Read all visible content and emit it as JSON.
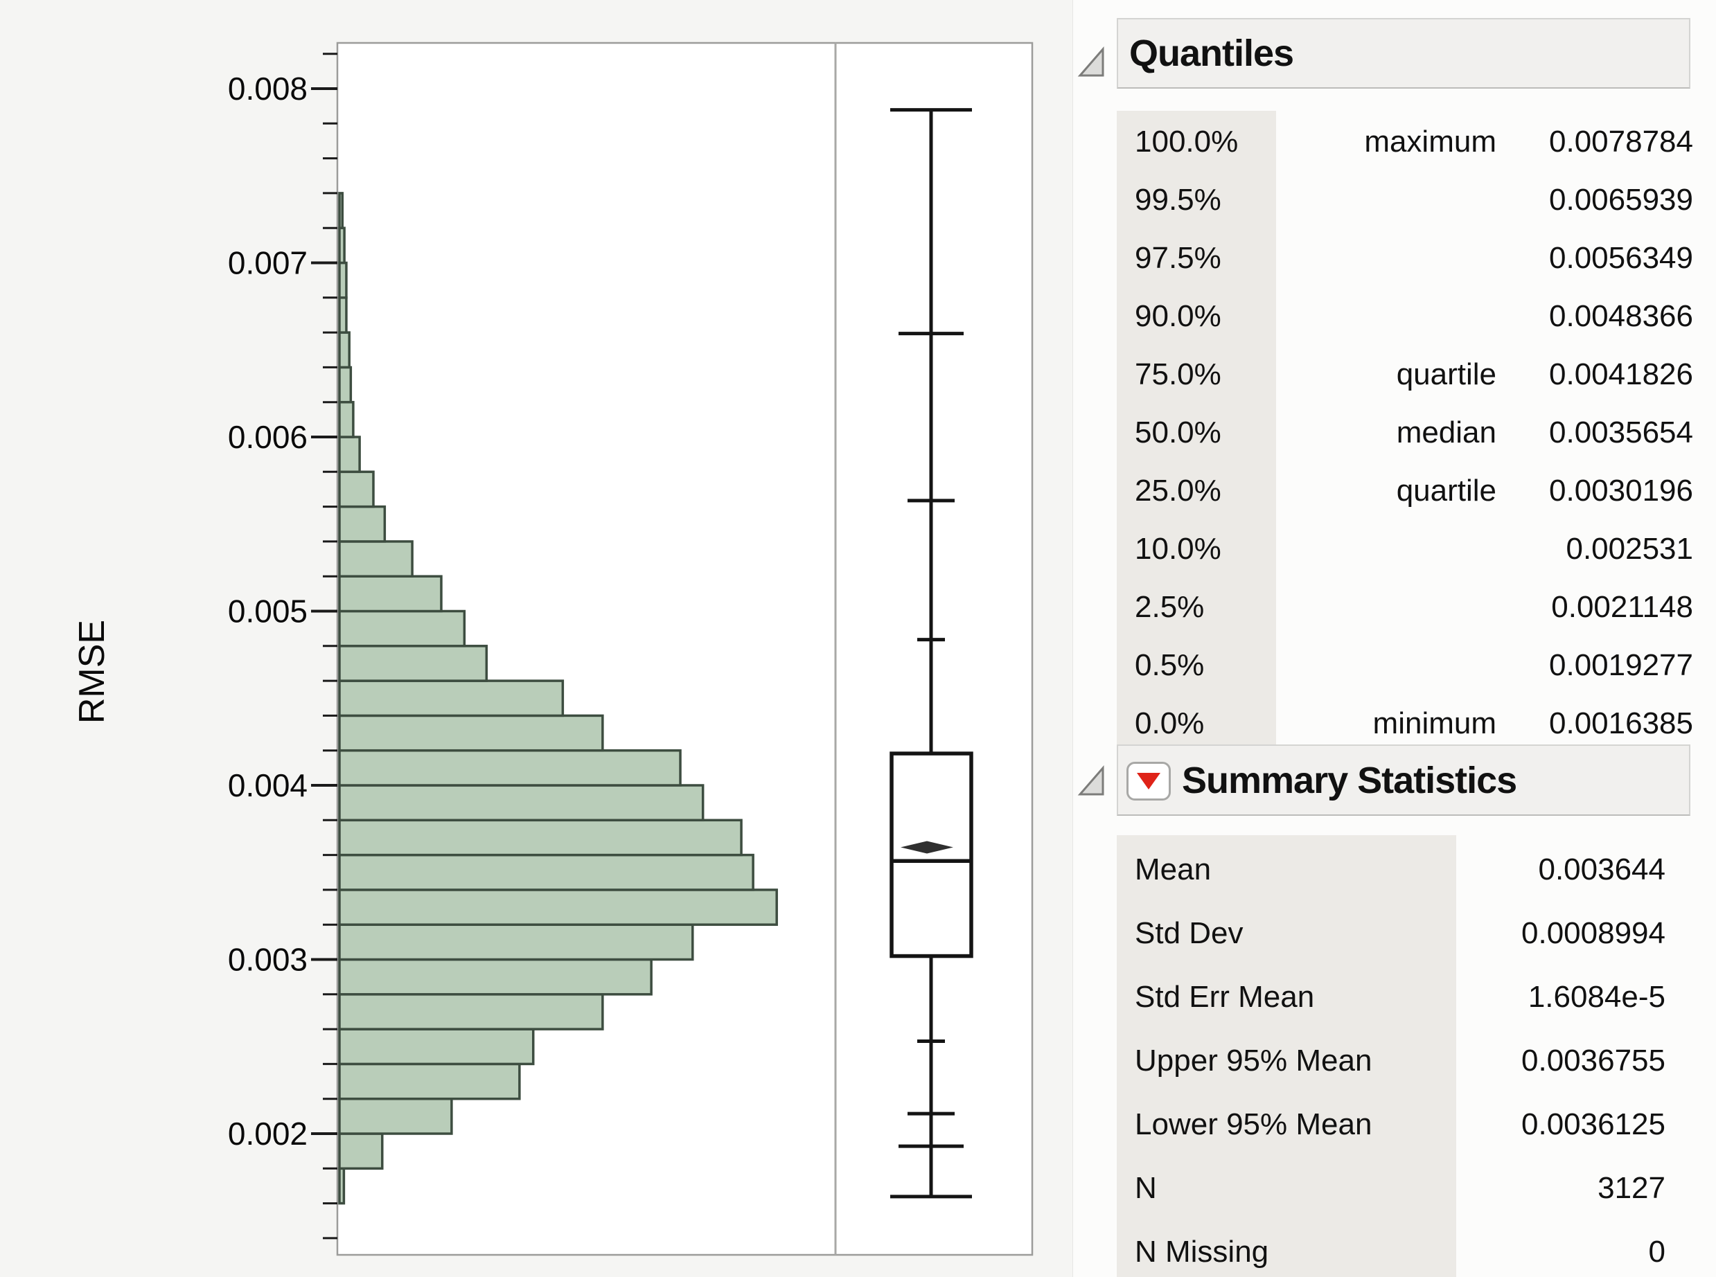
{
  "axis": {
    "label": "RMSE",
    "ticks": [
      {
        "value": 0.008,
        "label": "0.008"
      },
      {
        "value": 0.007,
        "label": "0.007"
      },
      {
        "value": 0.006,
        "label": "0.006"
      },
      {
        "value": 0.005,
        "label": "0.005"
      },
      {
        "value": 0.004,
        "label": "0.004"
      },
      {
        "value": 0.003,
        "label": "0.003"
      },
      {
        "value": 0.002,
        "label": "0.002"
      }
    ]
  },
  "chart_data": {
    "type": "bar",
    "subtype": "horizontal-histogram-with-quantile-boxplot",
    "title": "",
    "xlabel": "",
    "ylabel": "RMSE",
    "ylim": [
      0.00133,
      0.0083
    ],
    "grid": false,
    "bin_width": 0.0002,
    "bar_length_note": "frac = bar length as fraction of histogram panel width (no count axis is shown in the image)",
    "bins": [
      {
        "lo": 0.0016,
        "hi": 0.0018,
        "frac": 0.009
      },
      {
        "lo": 0.0018,
        "hi": 0.002,
        "frac": 0.087
      },
      {
        "lo": 0.002,
        "hi": 0.0022,
        "frac": 0.228
      },
      {
        "lo": 0.0022,
        "hi": 0.0024,
        "frac": 0.366
      },
      {
        "lo": 0.0024,
        "hi": 0.0026,
        "frac": 0.394
      },
      {
        "lo": 0.0026,
        "hi": 0.0028,
        "frac": 0.535
      },
      {
        "lo": 0.0028,
        "hi": 0.003,
        "frac": 0.634
      },
      {
        "lo": 0.003,
        "hi": 0.0032,
        "frac": 0.718
      },
      {
        "lo": 0.0032,
        "hi": 0.0034,
        "frac": 0.889
      },
      {
        "lo": 0.0034,
        "hi": 0.0036,
        "frac": 0.841
      },
      {
        "lo": 0.0036,
        "hi": 0.0038,
        "frac": 0.817
      },
      {
        "lo": 0.0038,
        "hi": 0.004,
        "frac": 0.739
      },
      {
        "lo": 0.004,
        "hi": 0.0042,
        "frac": 0.693
      },
      {
        "lo": 0.0042,
        "hi": 0.0044,
        "frac": 0.535
      },
      {
        "lo": 0.0044,
        "hi": 0.0046,
        "frac": 0.454
      },
      {
        "lo": 0.0046,
        "hi": 0.0048,
        "frac": 0.299
      },
      {
        "lo": 0.0048,
        "hi": 0.005,
        "frac": 0.254
      },
      {
        "lo": 0.005,
        "hi": 0.0052,
        "frac": 0.207
      },
      {
        "lo": 0.0052,
        "hi": 0.0054,
        "frac": 0.148
      },
      {
        "lo": 0.0054,
        "hi": 0.0056,
        "frac": 0.092
      },
      {
        "lo": 0.0056,
        "hi": 0.0058,
        "frac": 0.069
      },
      {
        "lo": 0.0058,
        "hi": 0.006,
        "frac": 0.041
      },
      {
        "lo": 0.006,
        "hi": 0.0062,
        "frac": 0.028
      },
      {
        "lo": 0.0062,
        "hi": 0.0064,
        "frac": 0.023
      },
      {
        "lo": 0.0064,
        "hi": 0.0066,
        "frac": 0.02
      },
      {
        "lo": 0.0066,
        "hi": 0.0068,
        "frac": 0.014
      },
      {
        "lo": 0.0068,
        "hi": 0.007,
        "frac": 0.014
      },
      {
        "lo": 0.007,
        "hi": 0.0072,
        "frac": 0.01
      },
      {
        "lo": 0.0072,
        "hi": 0.0074,
        "frac": 0.006
      }
    ],
    "boxplot": {
      "maximum": 0.0078784,
      "p995": 0.0065939,
      "p975": 0.0056349,
      "p90": 0.0048366,
      "q3": 0.0041826,
      "median": 0.0035654,
      "mean": 0.003644,
      "q1": 0.0030196,
      "p10": 0.002531,
      "p025": 0.0021148,
      "p005": 0.0019277,
      "minimum": 0.0016385
    }
  },
  "quantiles": {
    "title": "Quantiles",
    "rows": [
      {
        "pct": "100.0%",
        "mid": "maximum",
        "val": "0.0078784"
      },
      {
        "pct": "99.5%",
        "mid": "",
        "val": "0.0065939"
      },
      {
        "pct": "97.5%",
        "mid": "",
        "val": "0.0056349"
      },
      {
        "pct": "90.0%",
        "mid": "",
        "val": "0.0048366"
      },
      {
        "pct": "75.0%",
        "mid": "quartile",
        "val": "0.0041826"
      },
      {
        "pct": "50.0%",
        "mid": "median",
        "val": "0.0035654"
      },
      {
        "pct": "25.0%",
        "mid": "quartile",
        "val": "0.0030196"
      },
      {
        "pct": "10.0%",
        "mid": "",
        "val": "0.002531"
      },
      {
        "pct": "2.5%",
        "mid": "",
        "val": "0.0021148"
      },
      {
        "pct": "0.5%",
        "mid": "",
        "val": "0.0019277"
      },
      {
        "pct": "0.0%",
        "mid": "minimum",
        "val": "0.0016385"
      }
    ]
  },
  "summary": {
    "title": "Summary Statistics",
    "rows": [
      {
        "label": "Mean",
        "val": "0.003644"
      },
      {
        "label": "Std Dev",
        "val": "0.0008994"
      },
      {
        "label": "Std Err Mean",
        "val": "1.6084e-5"
      },
      {
        "label": "Upper 95% Mean",
        "val": "0.0036755"
      },
      {
        "label": "Lower 95% Mean",
        "val": "0.0036125"
      },
      {
        "label": "N",
        "val": "3127"
      },
      {
        "label": "N Missing",
        "val": "0"
      }
    ]
  },
  "colors": {
    "bar_fill": "#b9cdb9",
    "bar_stroke": "#3d4d40",
    "frame": "#9c9c9a",
    "divider": "#a8a8a6",
    "tick": "#1a1a1a",
    "box_stroke": "#141414",
    "mean_marker": "#2f2f2f",
    "accent_red": "#df2318",
    "left_bg": "#f5f5f3",
    "band_bg": "#f1f0ee",
    "label_col_bg": "#eceae6"
  }
}
